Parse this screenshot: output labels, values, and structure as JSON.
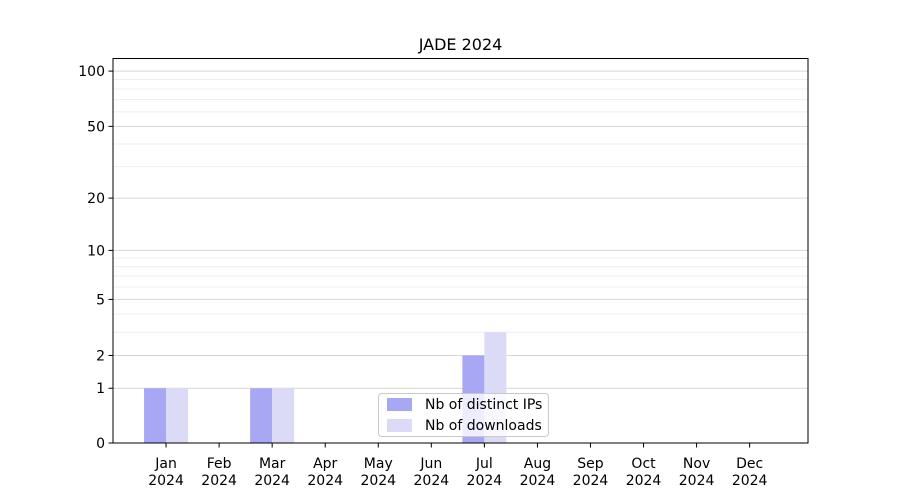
{
  "chart_data": {
    "type": "bar",
    "title": "JADE 2024",
    "categories": [
      "Jan",
      "Feb",
      "Mar",
      "Apr",
      "May",
      "Jun",
      "Jul",
      "Aug",
      "Sep",
      "Oct",
      "Nov",
      "Dec"
    ],
    "category_year": "2024",
    "series": [
      {
        "name": "Nb of distinct IPs",
        "color": "#a7a7f3",
        "values": [
          1,
          0,
          1,
          0,
          0,
          0,
          2,
          0,
          0,
          0,
          0,
          0
        ]
      },
      {
        "name": "Nb of downloads",
        "color": "#dbdbf8",
        "values": [
          1,
          0,
          1,
          0,
          0,
          0,
          3,
          0,
          0,
          0,
          0,
          0
        ]
      }
    ],
    "yscale": "log10(1+y)",
    "yticks": [
      0,
      1,
      2,
      5,
      10,
      20,
      50,
      100
    ],
    "yticks_minor": [
      3,
      4,
      6,
      7,
      8,
      9,
      30,
      40,
      60,
      70,
      80,
      90
    ],
    "ylim": [
      0,
      117
    ],
    "xlabel": "",
    "ylabel": "",
    "grid": "horizontal",
    "legend_position": "lower center"
  },
  "colors": {
    "major_grid": "#d6d6d6",
    "minor_grid": "#eeeeee",
    "spine": "#000000",
    "text": "#000000",
    "background": "#ffffff"
  }
}
